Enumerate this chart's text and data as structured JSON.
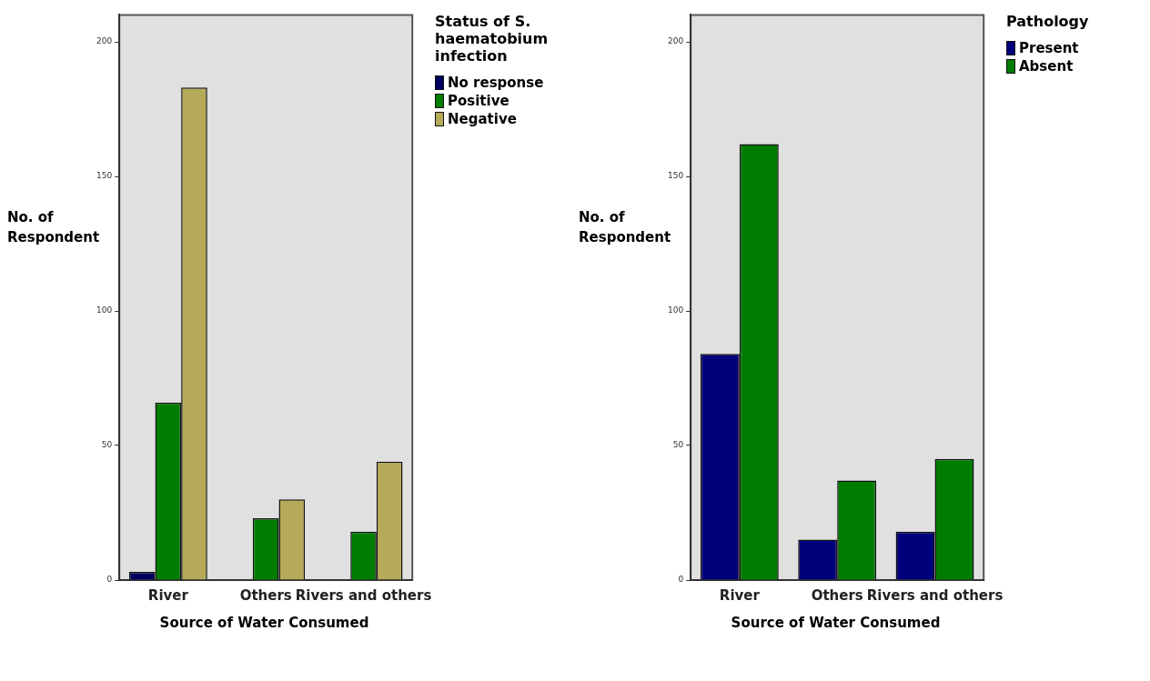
{
  "chart_data": [
    {
      "type": "bar",
      "categories": [
        "River",
        "Others",
        "Rivers and others"
      ],
      "xlabel": "Source of Water Consumed",
      "ylabel": "No. of Respondent",
      "legend_title": "Status of S. haematobium infection",
      "legend": "top right",
      "ylim": [
        0,
        210
      ],
      "yticks": [
        0,
        50,
        100,
        150,
        200
      ],
      "series": [
        {
          "name": "No response",
          "color": "#000060",
          "values": [
            3,
            0,
            0
          ]
        },
        {
          "name": "Positive",
          "color": "#007c00",
          "values": [
            66,
            23,
            18
          ]
        },
        {
          "name": "Negative",
          "color": "#b5aa58",
          "values": [
            183,
            30,
            44
          ]
        }
      ]
    },
    {
      "type": "bar",
      "categories": [
        "River",
        "Others",
        "Rivers and others"
      ],
      "xlabel": "Source of Water Consumed",
      "ylabel": "No. of Respondent",
      "legend_title": "Pathology",
      "legend": "top right",
      "ylim": [
        0,
        210
      ],
      "yticks": [
        0,
        50,
        100,
        150,
        200
      ],
      "series": [
        {
          "name": "Present",
          "color": "#00007a",
          "values": [
            84,
            15,
            18
          ]
        },
        {
          "name": "Absent",
          "color": "#007c00",
          "values": [
            162,
            37,
            45
          ]
        }
      ]
    }
  ]
}
